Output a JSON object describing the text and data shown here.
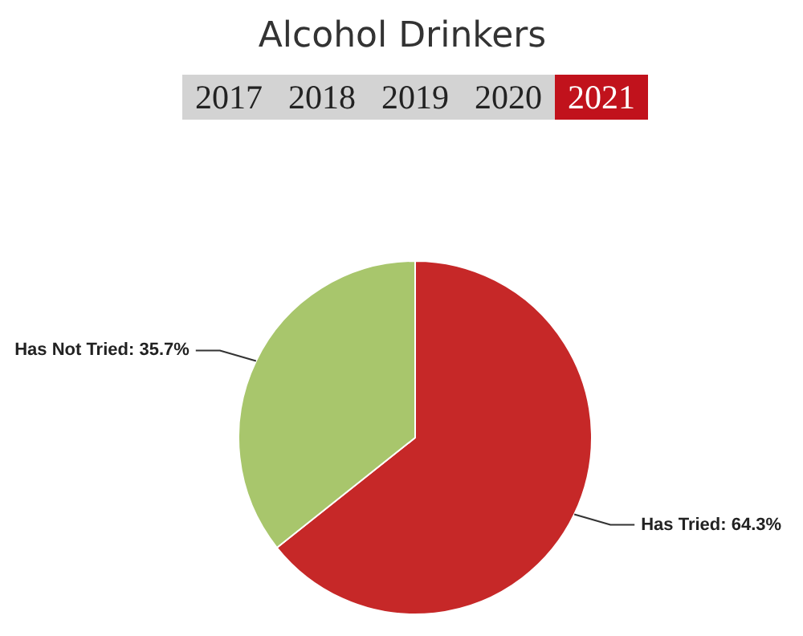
{
  "chart_data": {
    "type": "pie",
    "title": "Alcohol Drinkers",
    "annotations": [
      "2017",
      "2018",
      "2019",
      "2020",
      "2021"
    ],
    "categories": [
      "Has Tried",
      "Has Not Tried"
    ],
    "values": [
      64.3,
      35.7
    ],
    "colors": [
      "#c62828",
      "#a8c66c"
    ],
    "value_labels": [
      "64.3%",
      "35.7%"
    ]
  }
}
